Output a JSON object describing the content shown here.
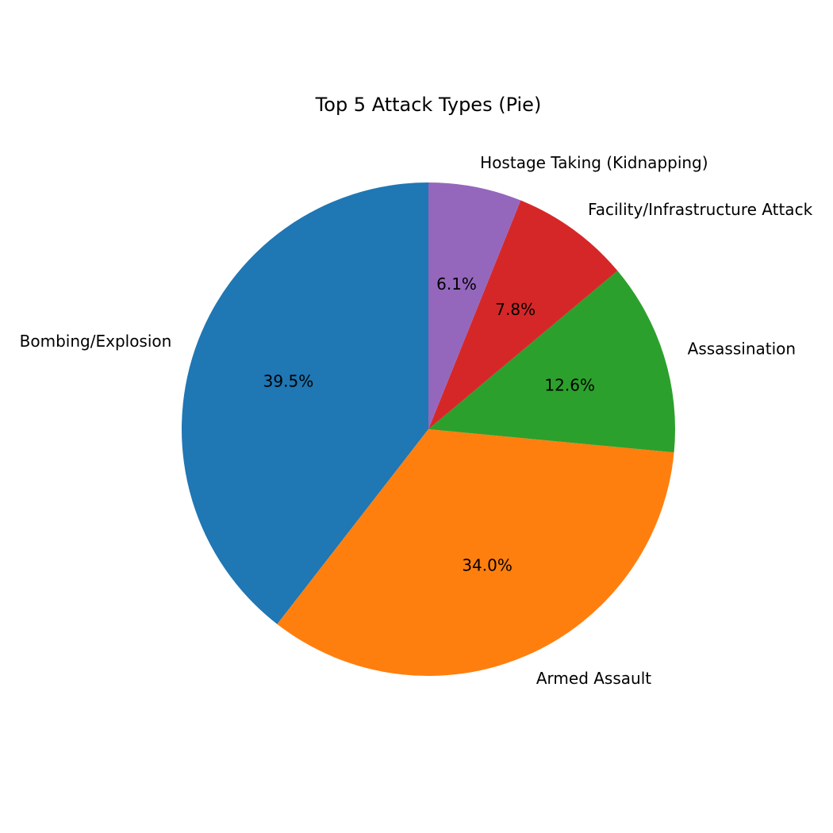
{
  "chart_data": {
    "type": "pie",
    "title": "Top 5 Attack Types (Pie)",
    "categories": [
      "Bombing/Explosion",
      "Armed Assault",
      "Assassination",
      "Facility/Infrastructure Attack",
      "Hostage Taking (Kidnapping)"
    ],
    "values": [
      39.5,
      34.0,
      12.6,
      7.8,
      6.1
    ],
    "percent_labels": [
      "39.5%",
      "34.0%",
      "12.6%",
      "7.8%",
      "6.1%"
    ],
    "colors": [
      "#1f77b4",
      "#ff7f0e",
      "#2ca02c",
      "#d62728",
      "#9467bd"
    ],
    "start_angle_deg": 90,
    "direction": "counterclockwise",
    "legend": "none"
  }
}
